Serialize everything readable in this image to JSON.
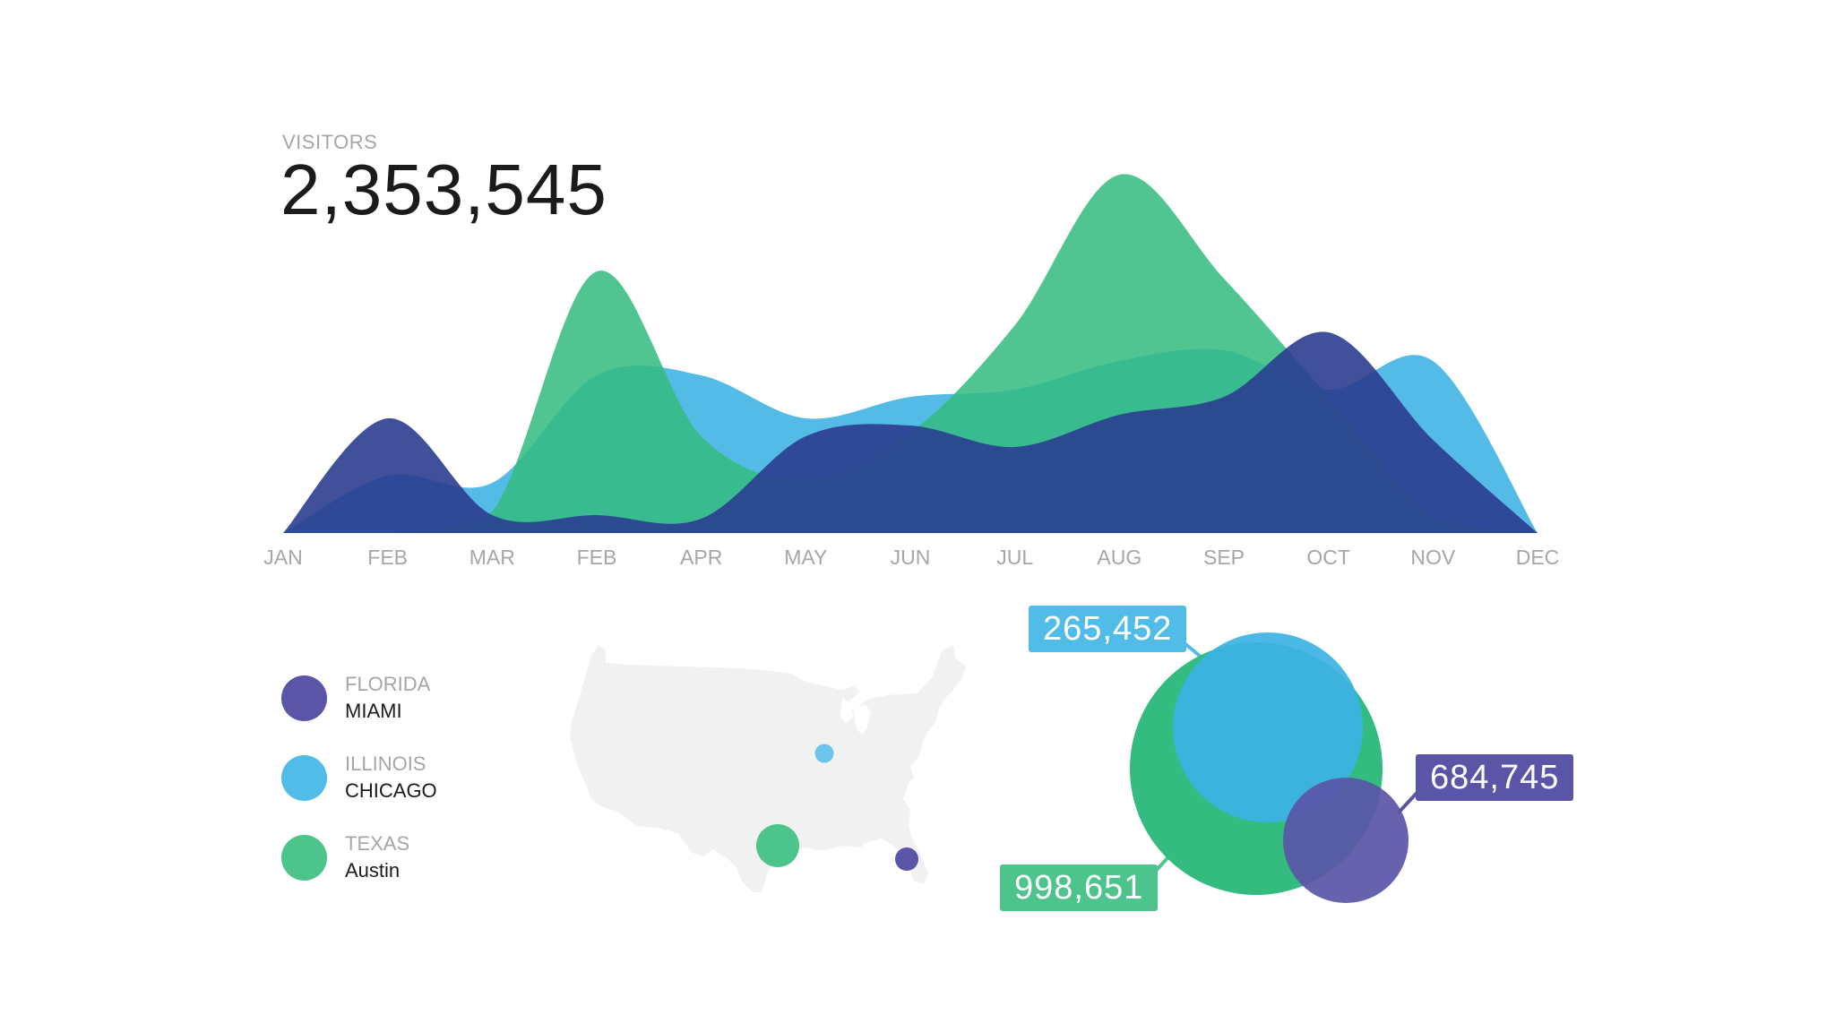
{
  "header": {
    "label": "VISITORS",
    "total": "2,353,545"
  },
  "colors": {
    "navy": "#2b3d8f",
    "blue": "#3cb2e4",
    "green": "#33bb80",
    "purple": "#5a55a7",
    "map": "#f1f1f1"
  },
  "chart_data": [
    {
      "type": "area",
      "title": "",
      "categories": [
        "JAN",
        "FEB",
        "MAR",
        "FEB",
        "APR",
        "MAY",
        "JUN",
        "JUL",
        "AUG",
        "SEP",
        "OCT",
        "NOV",
        "DEC"
      ],
      "ylim": [
        0,
        100
      ],
      "grid": false,
      "series": [
        {
          "color": "#3cb2e4",
          "values": [
            0,
            16,
            14,
            44,
            44,
            32,
            38,
            40,
            48,
            51,
            40,
            48,
            0
          ]
        },
        {
          "color": "#33bb80",
          "values": [
            0,
            0,
            6,
            73,
            27,
            15,
            28,
            58,
            100,
            71,
            38,
            5,
            0
          ]
        },
        {
          "color": "#2b3d8f",
          "values": [
            0,
            32,
            5,
            5,
            4,
            27,
            30,
            24,
            33,
            38,
            56,
            26,
            0
          ]
        }
      ]
    },
    {
      "type": "bubble",
      "title": "",
      "series": [
        {
          "name": "TEXAS",
          "color": "#33bb80",
          "values": [
            998651
          ],
          "label": "998,651"
        },
        {
          "name": "ILLINOIS",
          "color": "#3cb2e4",
          "values": [
            265452
          ],
          "label": "265,452"
        },
        {
          "name": "FLORIDA",
          "color": "#5a55a7",
          "values": [
            684745
          ],
          "label": "684,745"
        }
      ]
    }
  ],
  "legend": [
    {
      "state": "FLORIDA",
      "city": "MIAMI",
      "color": "#5a55a7"
    },
    {
      "state": "ILLINOIS",
      "city": "CHICAGO",
      "color": "#52bce9"
    },
    {
      "state": "TEXAS",
      "city": "Austin",
      "color": "#4cc48b"
    }
  ],
  "map": {
    "markers": [
      {
        "city": "CHICAGO",
        "color": "#6cc3eb"
      },
      {
        "city": "Austin",
        "color": "#4cc48b"
      },
      {
        "city": "MIAMI",
        "color": "#5a55a7"
      }
    ]
  },
  "callouts": {
    "illinois": "265,452",
    "florida": "684,745",
    "texas": "998,651"
  }
}
